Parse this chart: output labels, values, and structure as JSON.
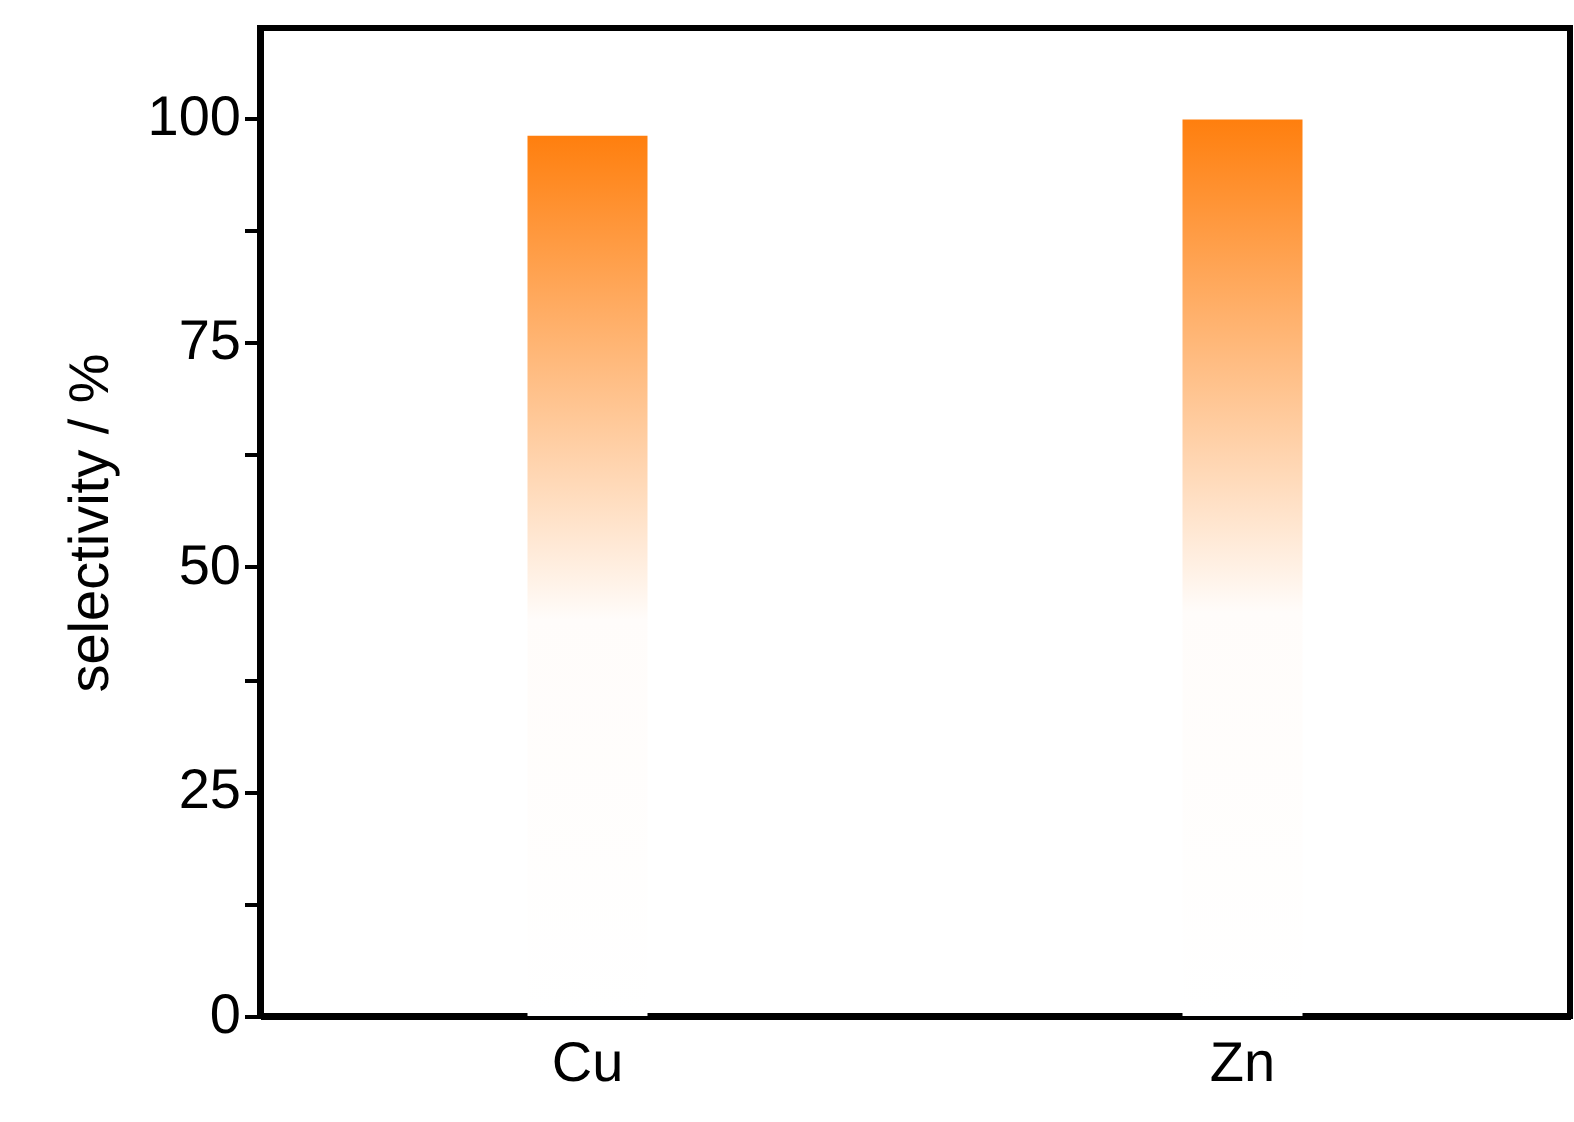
{
  "chart_data": {
    "type": "bar",
    "ylabel": "selectivity / %",
    "categories": [
      "Cu",
      "Zn"
    ],
    "values": [
      98,
      99.8
    ],
    "color": "#ff7f0e",
    "ylim": [
      0,
      110
    ],
    "yticks": [
      0,
      {
        "value": 12.5,
        "label": null
      },
      25,
      {
        "value": 37.5,
        "label": null
      },
      50,
      {
        "value": 62.5,
        "label": null
      },
      75,
      {
        "value": 87.5,
        "label": null
      },
      100
    ],
    "grid": false
  }
}
